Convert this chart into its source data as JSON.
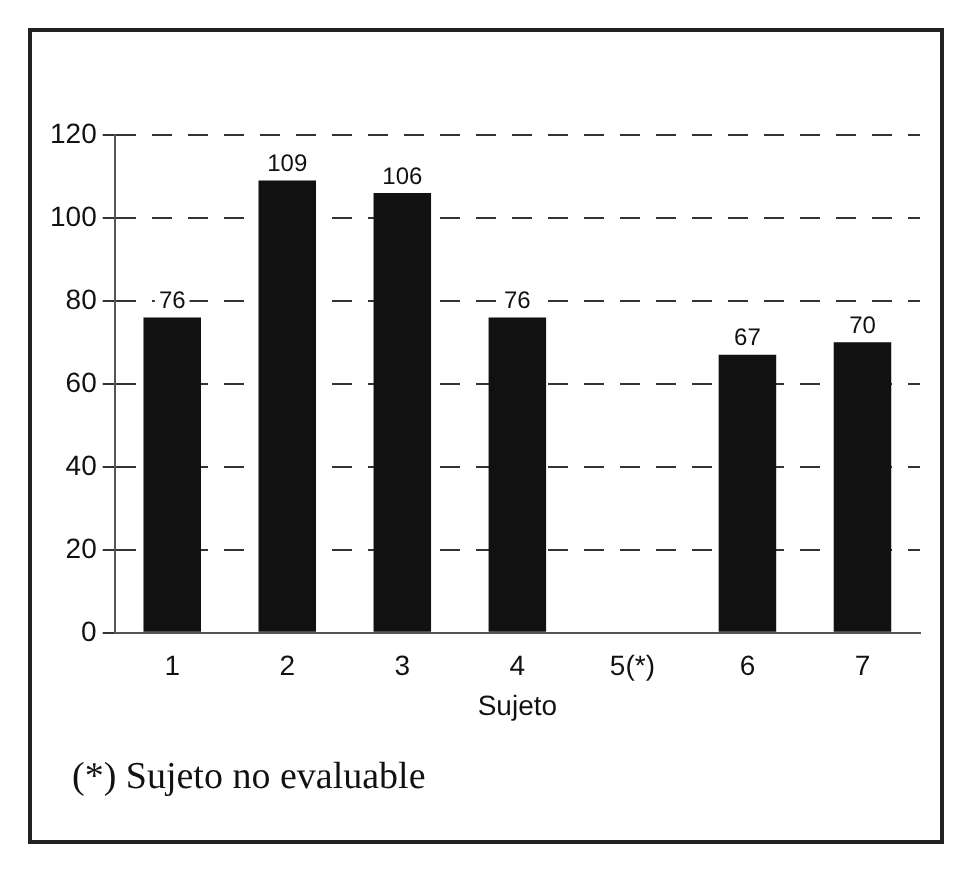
{
  "chart_data": {
    "type": "bar",
    "xlabel": "Sujeto",
    "categories": [
      "1",
      "2",
      "3",
      "4",
      "5(*)",
      "6",
      "7"
    ],
    "values": [
      76,
      109,
      106,
      76,
      null,
      67,
      70
    ],
    "color": "#111111",
    "ylim": [
      0,
      120
    ],
    "yticks": [
      0,
      20,
      40,
      60,
      80,
      100,
      120
    ],
    "grid": "y",
    "data_labels": true,
    "annotations": [
      "(*) Sujeto no evaluable"
    ]
  }
}
